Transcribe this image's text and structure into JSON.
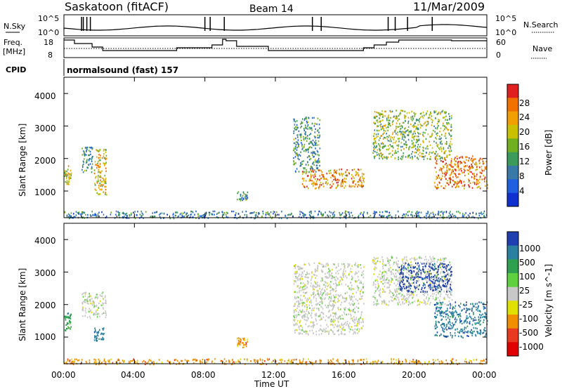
{
  "header": {
    "radar_title": "Saskatoon (fitACF)",
    "beam_title": "Beam 14",
    "date_title": "11/Mar/2009"
  },
  "status_panels": {
    "nsky_label": "N.Sky",
    "nsky_top_tick": "10^5",
    "nsky_bottom_tick": "10^0",
    "nsearch_label": "N.Search",
    "nsearch_top_tick": "10^5",
    "nsearch_bottom_tick": "10^0",
    "freq_label_1": "Freq.",
    "freq_label_2": "[MHz]",
    "freq_ticks": [
      "18",
      "8"
    ],
    "nave_label": "Nave",
    "nave_ticks": [
      "60",
      "0"
    ],
    "cpid_label": "CPID",
    "cpid_text": "normalsound (fast) 157"
  },
  "x_axis": {
    "label": "Time UT",
    "ticks": [
      "00:00",
      "04:00",
      "08:00",
      "12:00",
      "16:00",
      "20:00",
      "00:00"
    ]
  },
  "power_panel": {
    "ylabel": "Slant Range [km]",
    "yticks": [
      "4000",
      "3000",
      "2000",
      "1000"
    ],
    "colorbar_label": "Power [dB]",
    "colorbar_ticks": [
      "28",
      "24",
      "20",
      "16",
      "12",
      "8",
      "4"
    ]
  },
  "velocity_panel": {
    "ylabel": "Slant Range [km]",
    "yticks": [
      "4000",
      "3000",
      "2000",
      "1000"
    ],
    "colorbar_label": "Velocity [m s^-1]",
    "colorbar_ticks": [
      "1000",
      "500",
      "100",
      "25",
      "-25",
      "-100",
      "-500",
      "-1000"
    ]
  },
  "chart_data": [
    {
      "type": "heatmap",
      "title": "Saskatoon (fitACF) Beam 14 11/Mar/2009",
      "xlabel": "Time UT",
      "ylabel": "Slant Range [km]",
      "xlim_hours": [
        0,
        24
      ],
      "ylim_km": [
        180,
        4500
      ],
      "colorbar": {
        "label": "Power [dB]",
        "range": [
          0,
          30
        ]
      },
      "power_palette": [
        "#1030d0",
        "#2060e0",
        "#3a78a8",
        "#3c9a5a",
        "#70b020",
        "#c8c000",
        "#f0a000",
        "#f07000",
        "#e02020"
      ],
      "echo_regions": [
        {
          "t": [
            0.0,
            0.4
          ],
          "range_km": [
            1200,
            1800
          ],
          "power_db": 20
        },
        {
          "t": [
            1.0,
            1.6
          ],
          "range_km": [
            1600,
            2400
          ],
          "power_db": 10
        },
        {
          "t": [
            1.7,
            2.4
          ],
          "range_km": [
            900,
            2300
          ],
          "power_db": 20
        },
        {
          "t": [
            9.8,
            10.4
          ],
          "range_km": [
            700,
            1000
          ],
          "power_db": 10
        },
        {
          "t": [
            13.5,
            17.0
          ],
          "range_km": [
            1100,
            1700
          ],
          "power_db": 24
        },
        {
          "t": [
            13.0,
            14.5
          ],
          "range_km": [
            1600,
            3300
          ],
          "power_db": 10
        },
        {
          "t": [
            17.5,
            22.0
          ],
          "range_km": [
            2000,
            3500
          ],
          "power_db": 15
        },
        {
          "t": [
            21.0,
            24.0
          ],
          "range_km": [
            1100,
            2100
          ],
          "power_db": 25
        },
        {
          "t": [
            0.0,
            24.0
          ],
          "range_km": [
            180,
            400
          ],
          "power_db": 8
        }
      ]
    },
    {
      "type": "heatmap",
      "title": "Saskatoon (fitACF) Beam 14 11/Mar/2009",
      "xlabel": "Time UT",
      "ylabel": "Slant Range [km]",
      "xlim_hours": [
        0,
        24
      ],
      "ylim_km": [
        180,
        4500
      ],
      "colorbar": {
        "label": "Velocity [m s^-1]",
        "levels": [
          1000,
          500,
          100,
          25,
          -25,
          -100,
          -500,
          -1000
        ]
      },
      "velocity_palette": [
        "#1e3fb0",
        "#2a80a0",
        "#2f9f50",
        "#60d040",
        "#c8c8c8",
        "#e0e000",
        "#f09000",
        "#e83a20",
        "#e00000"
      ],
      "echo_regions": [
        {
          "t": [
            0.0,
            0.4
          ],
          "range_km": [
            1200,
            1800
          ],
          "velocity": 100
        },
        {
          "t": [
            1.0,
            2.4
          ],
          "range_km": [
            1600,
            2400
          ],
          "velocity": 0
        },
        {
          "t": [
            1.7,
            2.3
          ],
          "range_km": [
            900,
            1300
          ],
          "velocity": 300
        },
        {
          "t": [
            9.8,
            10.4
          ],
          "range_km": [
            700,
            1000
          ],
          "velocity": -300
        },
        {
          "t": [
            13.0,
            17.0
          ],
          "range_km": [
            1100,
            3300
          ],
          "velocity": 0
        },
        {
          "t": [
            17.5,
            22.0
          ],
          "range_km": [
            2000,
            3500
          ],
          "velocity": 0
        },
        {
          "t": [
            19.0,
            22.0
          ],
          "range_km": [
            2400,
            3300
          ],
          "velocity": 700
        },
        {
          "t": [
            21.0,
            24.0
          ],
          "range_km": [
            1000,
            2100
          ],
          "velocity": 600
        },
        {
          "t": [
            0.0,
            24.0
          ],
          "range_km": [
            180,
            350
          ],
          "velocity": -200
        }
      ]
    }
  ]
}
